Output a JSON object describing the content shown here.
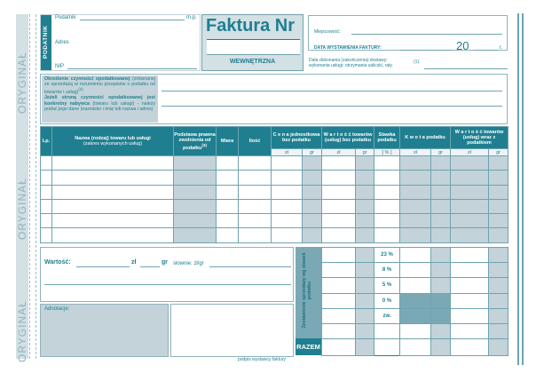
{
  "margin": {
    "label": "ORYGINAŁ"
  },
  "seller": {
    "tab": "PODATNIK",
    "taxpayer_label": "Podatnik",
    "stamp_label": "m.p.",
    "address_label": "Adres",
    "nip_label": "NIP"
  },
  "title": {
    "main": "Faktura Nr",
    "number_value": "",
    "subtitle": "WEWNĘTRZNA"
  },
  "place_date": {
    "place_label": "Miejscowość:",
    "issue_date_label": "DATA WYSTAWIENIA FAKTURY:",
    "century": "20",
    "year_suffix": "r.",
    "delivery_label_1": "Data dokonania (zakończenia) dostawy;",
    "delivery_label_2": "wykonania usługi; otrzymania zaliczki, raty.",
    "delivery_footnote": "(1)"
  },
  "activity": {
    "heading": "Określenie czynności opodatkowanej",
    "desc": "(zrównanej ze sprzedażą w rozumieniu przepisów o podatku od towarów i usług)",
    "desc_footnote": "(2)",
    "buyer_heading": "Jeżeli stroną czynności opodatkowanej jest konkretny nabywca",
    "buyer_desc": "(towaru lub usługi) - należy podać jego dane (nazwisko i imię lub nazwa i adres)"
  },
  "table": {
    "headers": {
      "lp": "Lp.",
      "name": "Nazwa (rodzaj) towaru lub usługi",
      "name_sub": "(zakres wykonanych usług)",
      "basis": "Podstawa prawna zwolnienia od podatku",
      "basis_footnote": "(3)",
      "unit": "Miara",
      "qty": "Ilość",
      "unit_price": "C e n a jednostkowa bez podatku",
      "net": "W a r t o ś ć towarów (usług) bez podatku",
      "rate": "Stawka podatku",
      "tax": "K w o t a podatku",
      "gross": "W a r t o ś ć towarów (usług) wraz z podatkiem"
    },
    "sub": {
      "zl": "zł",
      "gr": "gr",
      "pct": "[ % ]"
    },
    "rows": 6
  },
  "amount": {
    "label": "Wartość:",
    "zl": "zł",
    "gr": "gr",
    "words_label": "słownie: zł/gr"
  },
  "notes": {
    "label": "Adnotacje:"
  },
  "signature": {
    "label": "podpis wystawcy faktury"
  },
  "summary": {
    "side_label": "Zestawienie sprzedaży wg stawek podatku",
    "rates": [
      "23 %",
      "8 %",
      "5 %",
      "0 %",
      "zw.",
      ""
    ],
    "total_label": "RAZEM"
  },
  "colors": {
    "teal": "#1f7f90",
    "shade": "#c3d3d9",
    "border": "#6fa3b0"
  }
}
